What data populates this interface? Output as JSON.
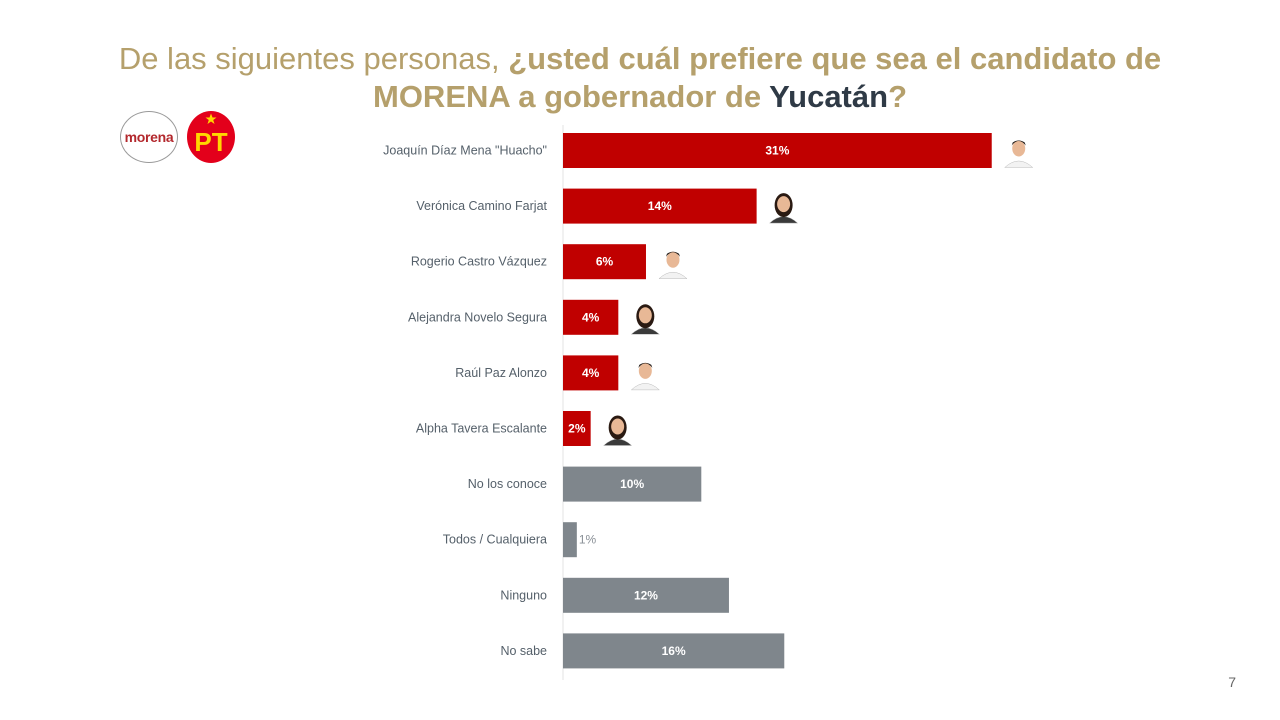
{
  "title": {
    "part1": "De las siguientes personas, ",
    "part2": "¿usted cuál prefiere que sea el candidato de",
    "part3": "MORENA a gobernador de ",
    "part4": "Yucatán",
    "part5": "?"
  },
  "logos": {
    "morena": "morena",
    "pt": "PT"
  },
  "page_number": "7",
  "colors": {
    "candidate": "#c00000",
    "other": "#7f868c",
    "title": "#b5a06c",
    "title_dark": "#2f3a46"
  },
  "chart_data": {
    "type": "bar",
    "orientation": "horizontal",
    "categories": [
      "Joaquín Díaz Mena \"Huacho\"",
      "Verónica Camino Farjat",
      "Rogerio Castro Vázquez",
      "Alejandra Novelo Segura",
      "Raúl Paz Alonzo",
      "Alpha Tavera Escalante",
      "No los conoce",
      "Todos / Cualquiera",
      "Ninguno",
      "No sabe"
    ],
    "values": [
      31,
      14,
      6,
      4,
      4,
      2,
      10,
      1,
      12,
      16
    ],
    "labels": [
      "31%",
      "14%",
      "6%",
      "4%",
      "4%",
      "2%",
      "10%",
      "1%",
      "12%",
      "16%"
    ],
    "groups": [
      "candidate",
      "candidate",
      "candidate",
      "candidate",
      "candidate",
      "candidate",
      "other",
      "other",
      "other",
      "other"
    ],
    "photo_icons": [
      "man-portrait-icon",
      "woman-portrait-icon",
      "man-portrait-icon",
      "woman-portrait-icon",
      "man-portrait-icon",
      "woman-portrait-icon",
      null,
      null,
      null,
      null
    ],
    "xlim": [
      0,
      40
    ],
    "grid": false,
    "legend": "none"
  }
}
